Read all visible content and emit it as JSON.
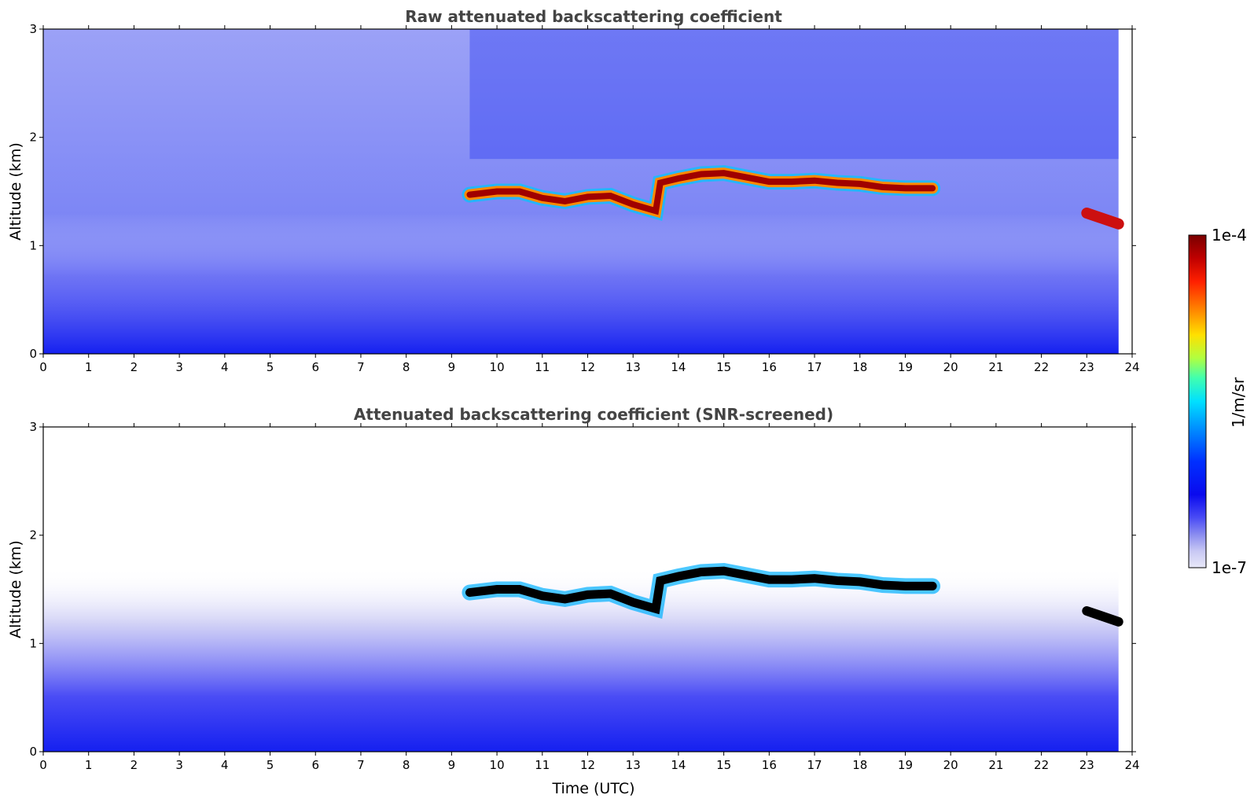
{
  "figure": {
    "colorbar": {
      "label": "1/m/sr",
      "max_label": "1e-4",
      "min_label": "1e-7",
      "min": 1e-07,
      "max": 0.0001,
      "scale": "log",
      "colormap": [
        "#e8e8f8",
        "#c8c8f4",
        "#8a8cf0",
        "#4a4cf5",
        "#0a0aee",
        "#0030ff",
        "#0090ff",
        "#00e0ff",
        "#40ffb0",
        "#b0ff40",
        "#ffe000",
        "#ff8000",
        "#ff2000",
        "#c00000",
        "#7a0000"
      ],
      "screened_cloud_color": "#000000"
    }
  },
  "chart_data": [
    {
      "type": "heatmap",
      "title": "Raw attenuated backscattering coefficient",
      "xlabel": "",
      "ylabel": "Altitude (km)",
      "xlim": [
        0,
        24
      ],
      "ylim": [
        0,
        3
      ],
      "xticks": [
        "0",
        "1",
        "2",
        "3",
        "4",
        "5",
        "6",
        "7",
        "8",
        "9",
        "10",
        "11",
        "12",
        "13",
        "14",
        "15",
        "16",
        "17",
        "18",
        "19",
        "20",
        "21",
        "22",
        "23",
        "24"
      ],
      "yticks": [
        "0",
        "1",
        "2",
        "3"
      ],
      "data_end_time": 23.7,
      "cloud_layer": {
        "x": [
          9.4,
          10.0,
          10.5,
          11.0,
          11.5,
          12.0,
          12.5,
          13.0,
          13.5,
          13.6,
          14.0,
          14.5,
          15.0,
          15.5,
          16.0,
          16.5,
          17.0,
          17.5,
          18.0,
          18.5,
          19.0,
          19.6
        ],
        "y": [
          1.47,
          1.5,
          1.5,
          1.44,
          1.41,
          1.45,
          1.46,
          1.38,
          1.32,
          1.58,
          1.62,
          1.66,
          1.67,
          1.63,
          1.59,
          1.59,
          1.6,
          1.58,
          1.57,
          1.54,
          1.53,
          1.53
        ]
      },
      "late_cloud": {
        "x": [
          23.0,
          23.7
        ],
        "y": [
          1.3,
          1.2
        ]
      }
    },
    {
      "type": "heatmap",
      "title": "Attenuated backscattering coefficient (SNR-screened)",
      "xlabel": "Time (UTC)",
      "ylabel": "Altitude (km)",
      "xlim": [
        0,
        24
      ],
      "ylim": [
        0,
        3
      ],
      "xticks": [
        "0",
        "1",
        "2",
        "3",
        "4",
        "5",
        "6",
        "7",
        "8",
        "9",
        "10",
        "11",
        "12",
        "13",
        "14",
        "15",
        "16",
        "17",
        "18",
        "19",
        "20",
        "21",
        "22",
        "23",
        "24"
      ],
      "yticks": [
        "0",
        "1",
        "2",
        "3"
      ],
      "data_end_time": 23.7
    }
  ]
}
